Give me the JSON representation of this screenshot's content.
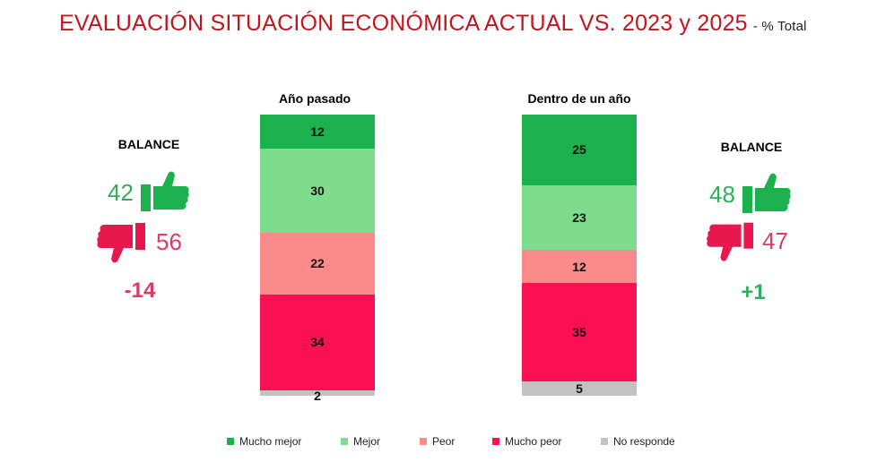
{
  "title": "EVALUACIÓN SITUACIÓN ECONÓMICA ACTUAL VS. 2023 y 2025",
  "subtitle": "- % Total",
  "chart_data": {
    "type": "bar",
    "stacked": true,
    "orientation": "vertical",
    "categories": [
      "Año pasado",
      "Dentro de un año"
    ],
    "series": [
      {
        "name": "Mucho mejor",
        "color": "#1bb14c",
        "values": [
          12,
          25
        ]
      },
      {
        "name": "Mejor",
        "color": "#7ddd8d",
        "values": [
          30,
          23
        ]
      },
      {
        "name": "Peor",
        "color": "#fb8a8a",
        "values": [
          22,
          12
        ]
      },
      {
        "name": "Mucho peor",
        "color": "#fb1153",
        "values": [
          34,
          35
        ]
      },
      {
        "name": "No responde",
        "color": "#c2c2c2",
        "values": [
          2,
          5
        ]
      }
    ],
    "ylim": [
      0,
      100
    ],
    "legend": "bottom"
  },
  "balance_left": {
    "label": "BALANCE",
    "positive": "42",
    "negative": "56",
    "net": "-14",
    "positive_color": "#2fae5c",
    "negative_color": "#e03a63",
    "thumbs_up_icon": "thumbs-up-icon",
    "thumbs_down_icon": "thumbs-down-icon"
  },
  "balance_right": {
    "label": "BALANCE",
    "positive": "48",
    "negative": "47",
    "net": "+1",
    "positive_color": "#2fae5c",
    "negative_color": "#e03a63",
    "thumbs_up_icon": "thumbs-up-icon",
    "thumbs_down_icon": "thumbs-down-icon"
  }
}
